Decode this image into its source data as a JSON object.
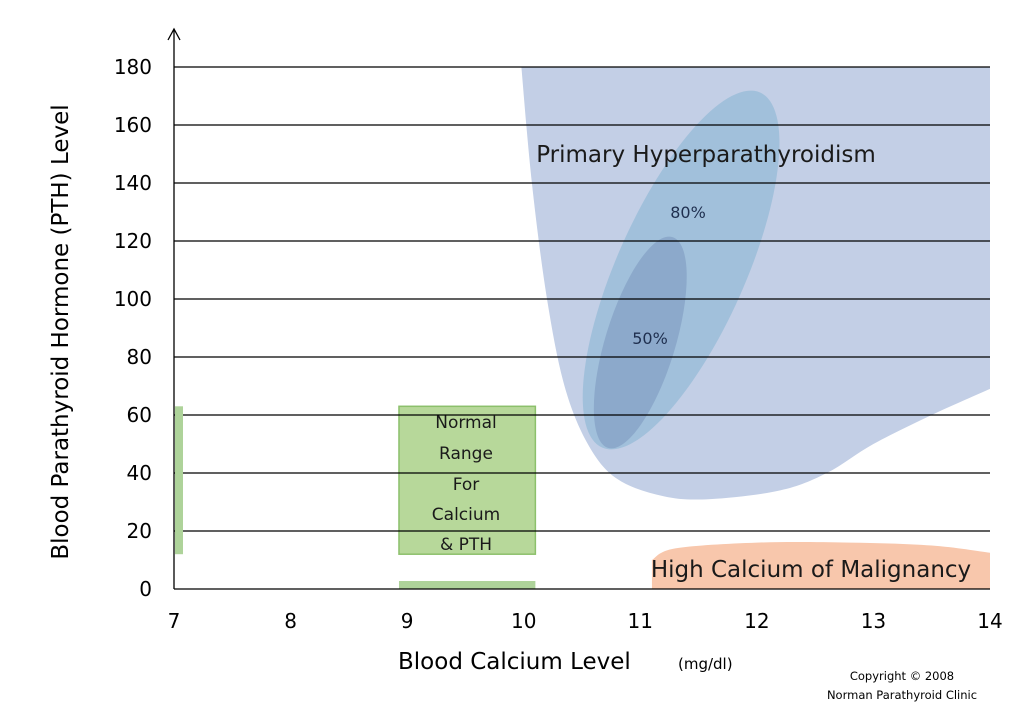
{
  "chart_data": {
    "type": "area",
    "xlabel": "Blood Calcium Level",
    "xunit": "(mg/dl)",
    "ylabel": "Blood Parathyroid Hormone  (PTH) Level",
    "xlim": [
      7,
      14
    ],
    "ylim": [
      0,
      180
    ],
    "x_ticks": [
      7,
      8,
      9,
      10,
      11,
      12,
      13,
      14
    ],
    "y_ticks": [
      0,
      20,
      40,
      60,
      80,
      100,
      120,
      140,
      160,
      180
    ],
    "grid": "horizontal",
    "regions": [
      {
        "name": "Primary Hyperparathyroidism",
        "color": "#c3cfe6",
        "outline": [
          [
            9.98,
            180
          ],
          [
            14,
            180
          ],
          [
            14,
            69
          ],
          [
            13.5,
            60
          ],
          [
            13,
            50
          ],
          [
            12.6,
            40
          ],
          [
            12.2,
            34
          ],
          [
            11.6,
            31
          ],
          [
            11.2,
            32
          ],
          [
            10.8,
            38
          ],
          [
            10.55,
            50
          ],
          [
            10.35,
            70
          ],
          [
            10.2,
            100
          ],
          [
            10.07,
            140
          ],
          [
            9.98,
            180
          ]
        ]
      },
      {
        "name": "High Calcium of Malignancy",
        "color": "#f8c7ac",
        "outline": [
          [
            11.1,
            0
          ],
          [
            11.1,
            10
          ],
          [
            11.3,
            14
          ],
          [
            12,
            16
          ],
          [
            12.8,
            16
          ],
          [
            13.5,
            15
          ],
          [
            14,
            12.5
          ],
          [
            14,
            0
          ]
        ]
      }
    ],
    "ellipses": [
      {
        "label": "80%",
        "color": "#9bbdd8",
        "cx": 11.35,
        "cy": 110,
        "rx_ca": 0.55,
        "ry_pth": 67,
        "rotation": 24
      },
      {
        "label": "50%",
        "color": "#89a6c9",
        "cx": 11.0,
        "cy": 85,
        "rx_ca": 0.3,
        "ry_pth": 38,
        "rotation": 17
      }
    ],
    "normal_range": {
      "label_lines": [
        "Normal",
        "Range",
        "For",
        "Calcium",
        "& PTH"
      ],
      "fill": "#b7d89a",
      "stroke": "#8cc06b",
      "calcium": [
        8.93,
        10.1
      ],
      "pth": [
        12,
        63
      ]
    },
    "axis_markers": {
      "pth_bar_on_y_axis": [
        12,
        63
      ],
      "calcium_bar_on_x_axis": [
        8.93,
        10.1
      ],
      "fill": "#aed39a"
    },
    "annotations": {
      "primary": "Primary Hyperparathyroidism",
      "malignancy": "High Calcium of Malignancy",
      "copyright_line1": "Copyright © 2008",
      "copyright_line2": "Norman Parathyroid Clinic"
    }
  }
}
